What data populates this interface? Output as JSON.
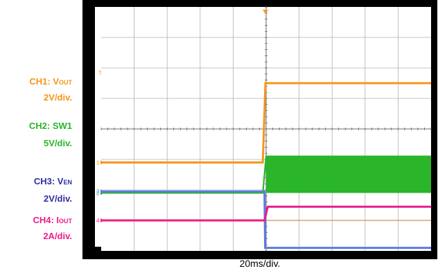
{
  "chart_data": {
    "type": "line",
    "title": "",
    "time_per_div": "20ms/div.",
    "divisions": {
      "x": 10,
      "y": 8
    },
    "trigger_label": "T",
    "channels": [
      {
        "name": "CH1",
        "label_prefix": "CH1: V",
        "label_sub": "OUT",
        "scale": "2V/div.",
        "marker": "1",
        "color": "#F7941D",
        "trace": [
          [
            0,
            2.9
          ],
          [
            4.9,
            2.9
          ],
          [
            4.98,
            5.5
          ],
          [
            10,
            5.5
          ]
        ]
      },
      {
        "name": "CH2",
        "label_prefix": "CH2: SW1",
        "label_sub": "",
        "scale": "5V/div.",
        "marker": "2",
        "color": "#2AB52A",
        "trace": [
          [
            0,
            1.9
          ],
          [
            4.9,
            1.9
          ],
          [
            5.0,
            3.1
          ],
          [
            10,
            3.1
          ]
        ],
        "switching_band": [
          5.0,
          10,
          1.9,
          3.1
        ]
      },
      {
        "name": "CH3",
        "label_prefix": "CH3: V",
        "label_sub": "EN",
        "scale": "2V/div.",
        "marker": "3",
        "color": "#5B7BE0",
        "trace": [
          [
            0,
            1.95
          ],
          [
            4.95,
            1.95
          ],
          [
            4.97,
            0.1
          ],
          [
            10,
            0.1
          ]
        ]
      },
      {
        "name": "CH4",
        "label_prefix": "CH4: I",
        "label_sub": "OUT",
        "scale": "2A/div.",
        "marker": "4",
        "color": "#EC1C8C",
        "trace": [
          [
            0,
            1.0
          ],
          [
            4.95,
            1.0
          ],
          [
            5.05,
            1.45
          ],
          [
            10,
            1.45
          ]
        ]
      }
    ],
    "channel3_ground_trace": {
      "color": "#C8742A",
      "trace": [
        [
          0,
          1.0
        ],
        [
          10,
          1.0
        ]
      ]
    }
  }
}
